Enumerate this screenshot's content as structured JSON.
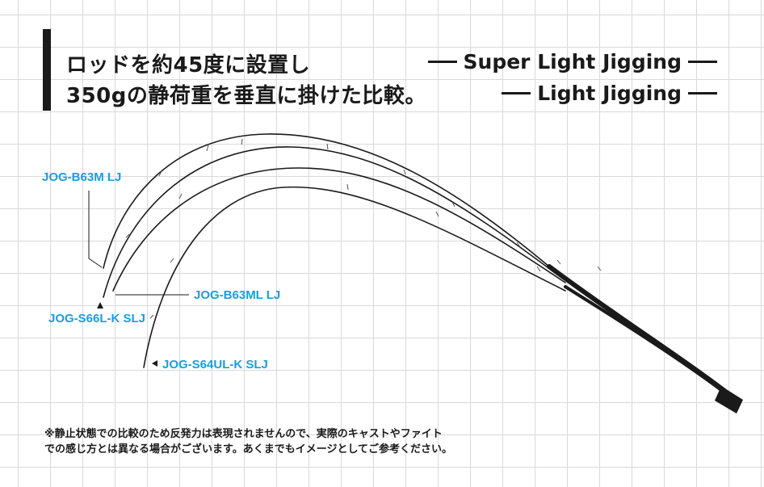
{
  "title": {
    "line1": "ロッドを約45度に設置し",
    "line2": "350gの静荷重を垂直に掛けた比較。"
  },
  "legend": {
    "super_light_jigging": "Super Light Jigging",
    "light_jigging": "Light Jigging"
  },
  "rods": [
    {
      "label": "JOG-B63M LJ",
      "category": "Light Jigging"
    },
    {
      "label": "JOG-B63ML LJ",
      "category": "Light Jigging"
    },
    {
      "label": "JOG-S66L-K SLJ",
      "category": "Super Light Jigging"
    },
    {
      "label": "JOG-S64UL-K SLJ",
      "category": "Super Light Jigging"
    }
  ],
  "colors": {
    "label_blue": "#1a9de0",
    "rod": "#1a1a1a",
    "grid": "#d9d9d9"
  },
  "notes": {
    "line1": "※静止状態での比較のため反発力は表現されませんので、実際のキャストやファイト",
    "line2": "での感じ方とは異なる場合がございます。あくまでもイメージとしてご参考ください。"
  }
}
